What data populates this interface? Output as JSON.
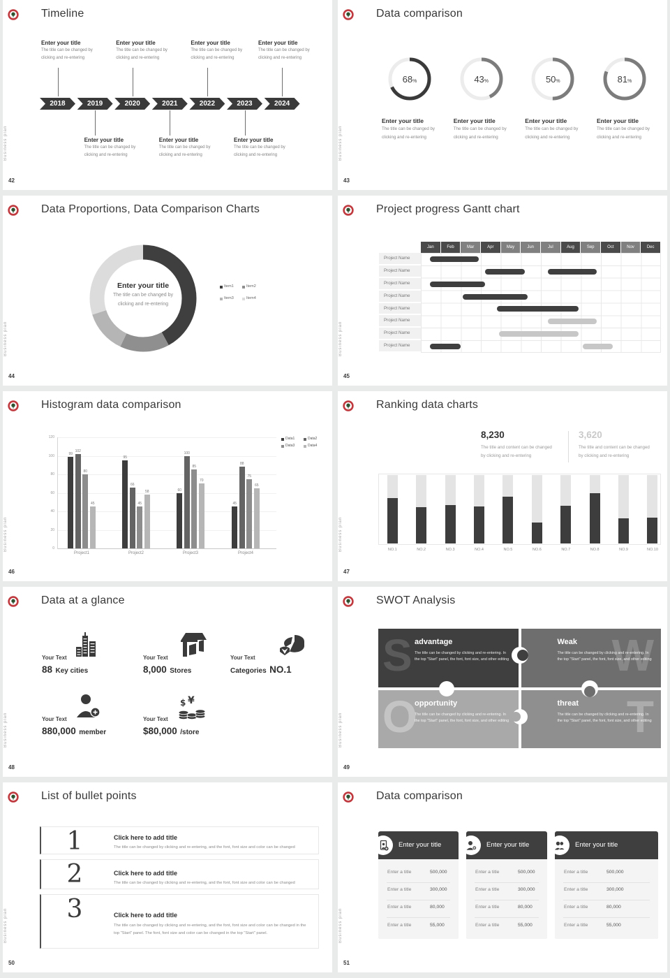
{
  "branding": {
    "vertical_label": "Business plan",
    "logo_ring": "#bf3b40",
    "logo_tree": "#2c5230"
  },
  "slides": {
    "timeline": {
      "page": "42",
      "title": "Timeline",
      "entry_title": "Enter your title",
      "entry_desc": [
        "The title can be changed by",
        "clicking and re-entering"
      ],
      "years": [
        "2018",
        "2019",
        "2020",
        "2021",
        "2022",
        "2023",
        "2024"
      ],
      "top_indices": [
        0,
        2,
        4,
        6
      ],
      "bottom_indices": [
        1,
        3,
        5
      ]
    },
    "rings": {
      "page": "43",
      "title": "Data comparison",
      "entry_title": "Enter your title",
      "entry_desc": [
        "The title can be changed by",
        "clicking and re-entering"
      ]
    },
    "donut": {
      "page": "44",
      "title": "Data Proportions, Data Comparison Charts",
      "center_title": "Enter your title",
      "center_desc": [
        "The title can be changed by",
        "clicking and re-entering"
      ]
    },
    "gantt": {
      "page": "45",
      "title": "Project progress Gantt chart"
    },
    "histogram": {
      "page": "46",
      "title": "Histogram data comparison"
    },
    "ranking": {
      "page": "47",
      "title": "Ranking data charts",
      "stats": [
        {
          "value": "8,230",
          "muted": false,
          "desc": [
            "The title and content can be changed",
            "by clicking and re-entering"
          ]
        },
        {
          "value": "3,620",
          "muted": true,
          "desc": [
            "The title and content can be changed",
            "by clicking and re-entering"
          ]
        }
      ]
    },
    "glance": {
      "page": "48",
      "title": "Data at a glance",
      "label": "Your Text",
      "items": [
        {
          "icon": "city-icon",
          "number": "88",
          "unit": "Key cities",
          "unit_first": false
        },
        {
          "icon": "store-icon",
          "number": "8,000",
          "unit": "Stores",
          "unit_first": false
        },
        {
          "icon": "pie-icon",
          "number": "NO.1",
          "unit": "Categories",
          "unit_first": true
        },
        {
          "icon": "member-icon",
          "number": "880,000",
          "unit": "member",
          "unit_first": false
        },
        {
          "icon": "coins-icon",
          "number": "$80,000",
          "unit": "/store",
          "unit_first": false
        }
      ]
    },
    "swot": {
      "page": "49",
      "title": "SWOT Analysis",
      "body": "The title can be changed by clicking and re-entering. In the top \"Start\" panel, the font, font size, and other editing",
      "quads": [
        {
          "letter": "S",
          "title": "advantage",
          "bg": "#3f3f3f",
          "letter_opacity": 0.14
        },
        {
          "letter": "W",
          "title": "Weak",
          "bg": "#6e6e6e",
          "letter_opacity": 0.18
        },
        {
          "letter": "O",
          "title": "opportunity",
          "bg": "#a9a9a9",
          "letter_opacity": 0.32
        },
        {
          "letter": "T",
          "title": "threat",
          "bg": "#8f8f8f",
          "letter_opacity": 0.26
        }
      ]
    },
    "bullets": {
      "page": "50",
      "title": "List of bullet points",
      "items": [
        {
          "num": "1",
          "title": "Click here to add title",
          "desc": "The title can be changed by clicking and re-entering, and the font, font size and color can be changed"
        },
        {
          "num": "2",
          "title": "Click here to add title",
          "desc": "The title can be changed by clicking and re-entering, and the font, font size and color can be changed"
        },
        {
          "num": "3",
          "title": "Click here to add title",
          "desc": "The title can be changed by clicking and re-entering, and the font, font size and color can be changed in the top \"Start\" panel. The font, font size and color can be changed in the top \"Start\" panel."
        }
      ]
    },
    "compare": {
      "page": "51",
      "title": "Data comparison",
      "card_title": "Enter your title",
      "row_label": "Enter a title",
      "values": [
        "500,000",
        "300,000",
        "80,000",
        "55,000"
      ],
      "cards": [
        {
          "icon": "contact-card-icon"
        },
        {
          "icon": "person-add-icon"
        },
        {
          "icon": "people-icon"
        }
      ]
    }
  },
  "chart_data": [
    {
      "id": "progress-rings",
      "type": "pie",
      "subtype": "donut-progress",
      "slide": 43,
      "values": [
        68,
        43,
        50,
        81
      ],
      "unit": "%",
      "arc_colors": [
        "#3a3a3a",
        "#7c7c7c",
        "#7c7c7c",
        "#7c7c7c"
      ],
      "track_color": "#ececec"
    },
    {
      "id": "proportions-donut",
      "type": "pie",
      "slide": 44,
      "labels": [
        "Item1",
        "Item2",
        "Item3",
        "Item4"
      ],
      "values": [
        42,
        15,
        13,
        30
      ],
      "colors": [
        "#3f3f3f",
        "#8f8f8f",
        "#b5b5b5",
        "#dcdcdc"
      ],
      "legend_position": "right"
    },
    {
      "id": "gantt",
      "type": "table",
      "subtype": "gantt",
      "slide": 45,
      "columns": [
        "Jan",
        "Feb",
        "Mar",
        "Apr",
        "May",
        "Jun",
        "Jul",
        "Aug",
        "Sep",
        "Oct",
        "Nov",
        "Dec"
      ],
      "header_shades": [
        "dark",
        "dark",
        "medium",
        "dark",
        "medium",
        "medium",
        "medium",
        "dark",
        "medium",
        "dark",
        "medium",
        "dark"
      ],
      "header_colors": {
        "dark": "#4a4a4a",
        "medium": "#808080"
      },
      "row_label": "Project Name",
      "row_count": 8,
      "bar_colors": {
        "dark": "#3f3f3f",
        "light": "#c7c7c7"
      },
      "bars": [
        {
          "row": 0,
          "start": 0.45,
          "end": 2.9,
          "shade": "dark"
        },
        {
          "row": 1,
          "start": 3.2,
          "end": 5.2,
          "shade": "dark"
        },
        {
          "row": 1,
          "start": 6.35,
          "end": 8.8,
          "shade": "dark"
        },
        {
          "row": 2,
          "start": 0.45,
          "end": 3.2,
          "shade": "dark"
        },
        {
          "row": 3,
          "start": 2.1,
          "end": 5.35,
          "shade": "dark"
        },
        {
          "row": 4,
          "start": 3.8,
          "end": 7.9,
          "shade": "dark"
        },
        {
          "row": 5,
          "start": 6.35,
          "end": 8.8,
          "shade": "light"
        },
        {
          "row": 6,
          "start": 3.9,
          "end": 7.9,
          "shade": "light"
        },
        {
          "row": 7,
          "start": 0.45,
          "end": 2.0,
          "shade": "dark"
        },
        {
          "row": 7,
          "start": 8.1,
          "end": 9.6,
          "shade": "light"
        }
      ]
    },
    {
      "id": "histogram",
      "type": "bar",
      "slide": 46,
      "categories": [
        "Project1",
        "Project2",
        "Project3",
        "Project4"
      ],
      "series": [
        {
          "name": "Data1",
          "values": [
            99,
            95,
            60,
            45
          ]
        },
        {
          "name": "Data2",
          "values": [
            102,
            66,
            100,
            88
          ]
        },
        {
          "name": "Data3",
          "values": [
            80,
            45,
            85,
            75
          ]
        },
        {
          "name": "Data4",
          "values": [
            45,
            58,
            70,
            65
          ]
        }
      ],
      "colors": [
        "#3d3d3d",
        "#646464",
        "#8d8d8d",
        "#b6b6b6"
      ],
      "ylim": [
        0,
        120
      ],
      "yticks": [
        0,
        20,
        40,
        60,
        80,
        100,
        120
      ],
      "grid": true,
      "legend_position": "top-right",
      "value_labels": true
    },
    {
      "id": "ranking",
      "type": "bar",
      "subtype": "fill-columns",
      "slide": 47,
      "categories": [
        "NO.1",
        "NO.2",
        "NO.3",
        "NO.4",
        "NO.5",
        "NO.6",
        "NO.7",
        "NO.8",
        "NO.9",
        "NO.10"
      ],
      "values": [
        0.66,
        0.53,
        0.56,
        0.54,
        0.68,
        0.31,
        0.55,
        0.73,
        0.37,
        0.38
      ],
      "value_note": "fraction of column track height",
      "bar_color": "#3d3d3d",
      "track_color": "#e4e4e4"
    }
  ]
}
